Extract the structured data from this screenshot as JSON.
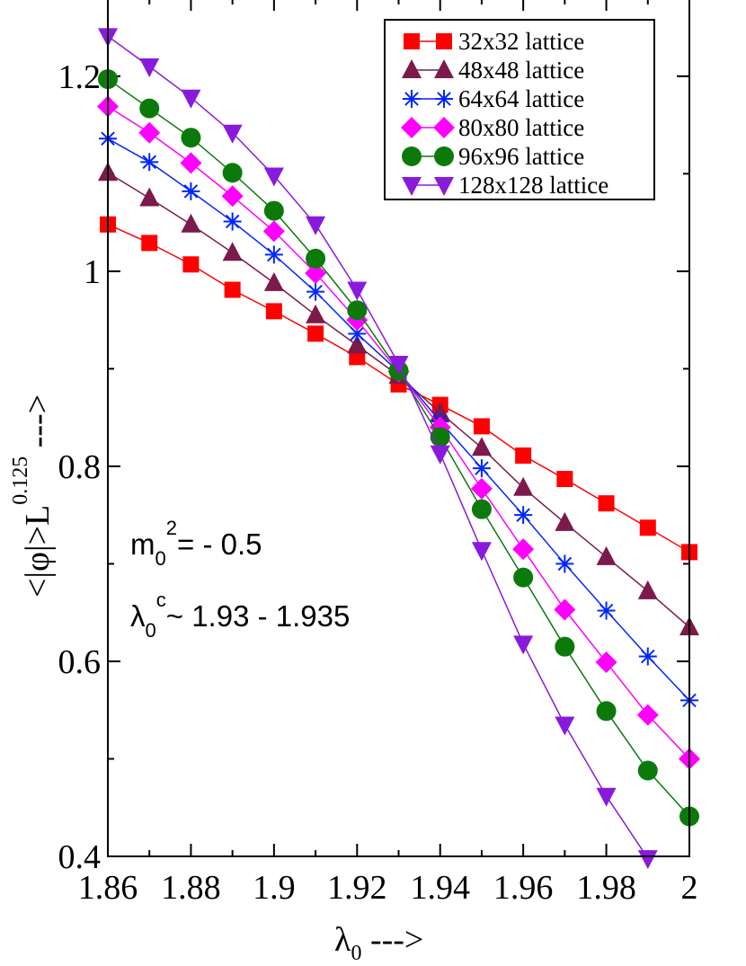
{
  "chart_data": {
    "type": "line",
    "xlabel_symbol": "λ",
    "xlabel_sub": "0",
    "xlabel_arrow": " --->",
    "ylabel_main": "<|φ|>L",
    "ylabel_exp": "0.125",
    "ylabel_arrow": "  --->",
    "xlim": [
      1.86,
      2.0
    ],
    "ylim": [
      0.4,
      1.28
    ],
    "xticks": [
      {
        "value": 1.86,
        "label": "1.86"
      },
      {
        "value": 1.88,
        "label": "1.88"
      },
      {
        "value": 1.9,
        "label": "1.9"
      },
      {
        "value": 1.92,
        "label": "1.92"
      },
      {
        "value": 1.94,
        "label": "1.94"
      },
      {
        "value": 1.96,
        "label": "1.96"
      },
      {
        "value": 1.98,
        "label": "1.98"
      },
      {
        "value": 2.0,
        "label": "2"
      }
    ],
    "yticks": [
      {
        "value": 0.4,
        "label": "0.4"
      },
      {
        "value": 0.6,
        "label": "0.6"
      },
      {
        "value": 0.8,
        "label": "0.8"
      },
      {
        "value": 1.0,
        "label": "1"
      },
      {
        "value": 1.2,
        "label": "1.2"
      }
    ],
    "annotations": {
      "mass_main": "m",
      "mass_sub": "0",
      "mass_sup": "2",
      "mass_value": "= - 0.5",
      "crit_main": "λ",
      "crit_sub": "0",
      "crit_sup": "c",
      "crit_value": "~ 1.93 - 1.935"
    },
    "legend_position": "top-right",
    "x": [
      1.86,
      1.87,
      1.88,
      1.89,
      1.9,
      1.91,
      1.92,
      1.93,
      1.94,
      1.95,
      1.96,
      1.97,
      1.98,
      1.99,
      2.0
    ],
    "series": [
      {
        "name": "32x32 lattice",
        "color": "#ff0000",
        "marker": "square",
        "values": [
          1.048,
          1.029,
          1.007,
          0.981,
          0.959,
          0.936,
          0.912,
          0.884,
          0.863,
          0.841,
          0.811,
          0.787,
          0.762,
          0.737,
          0.712
        ]
      },
      {
        "name": "48x48 lattice",
        "color": "#7b1a4b",
        "marker": "triangle-up",
        "values": [
          1.101,
          1.075,
          1.048,
          1.019,
          0.988,
          0.955,
          0.924,
          0.893,
          0.855,
          0.819,
          0.778,
          0.742,
          0.707,
          0.672,
          0.635
        ]
      },
      {
        "name": "64x64 lattice",
        "color": "#0026ff",
        "marker": "star",
        "values": [
          1.136,
          1.112,
          1.082,
          1.051,
          1.017,
          0.979,
          0.936,
          0.897,
          0.846,
          0.798,
          0.75,
          0.7,
          0.652,
          0.605,
          0.56
        ]
      },
      {
        "name": "80x80 lattice",
        "color": "#ff00ff",
        "marker": "diamond",
        "values": [
          1.169,
          1.142,
          1.111,
          1.077,
          1.041,
          0.998,
          0.95,
          0.897,
          0.84,
          0.777,
          0.715,
          0.653,
          0.599,
          0.545,
          0.5
        ]
      },
      {
        "name": "96x96 lattice",
        "color": "#0b7a0b",
        "marker": "circle",
        "values": [
          1.197,
          1.167,
          1.137,
          1.101,
          1.062,
          1.013,
          0.96,
          0.898,
          0.83,
          0.756,
          0.686,
          0.615,
          0.549,
          0.488,
          0.441
        ]
      },
      {
        "name": "128x128 lattice",
        "color": "#8a1adb",
        "marker": "triangle-down",
        "values": [
          1.241,
          1.21,
          1.178,
          1.142,
          1.098,
          1.048,
          0.981,
          0.905,
          0.813,
          0.714,
          0.618,
          0.535,
          0.462,
          0.398,
          null
        ]
      }
    ]
  }
}
